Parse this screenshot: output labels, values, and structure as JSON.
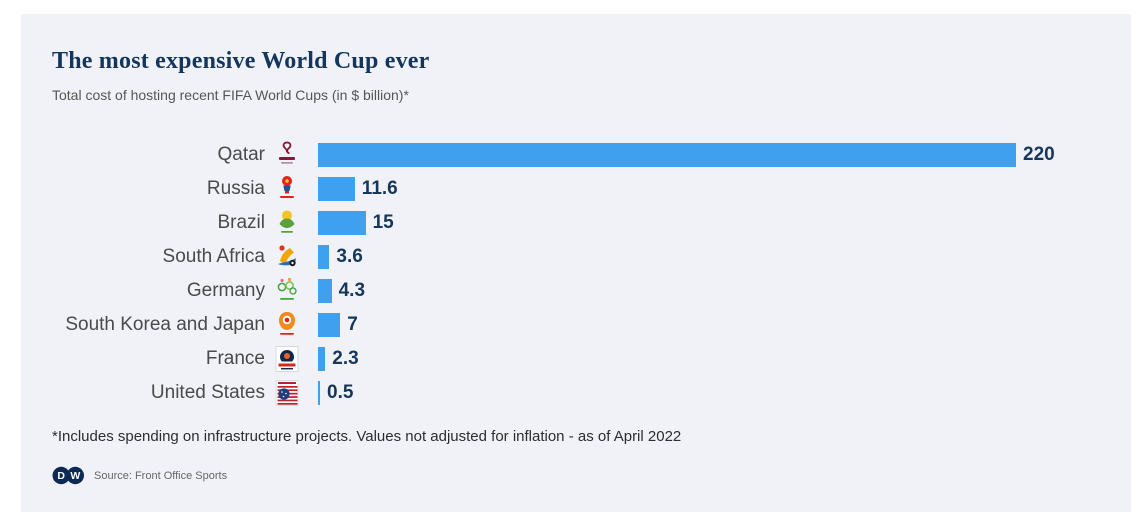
{
  "card": {
    "title": "The most expensive World Cup ever",
    "subtitle": "Total cost of hosting recent FIFA World Cups (in $ billion)*",
    "footnote": "*Includes spending on infrastructure projects. Values not adjusted for inflation - as of April 2022",
    "source_label": "Source: Front Office Sports",
    "logo_text": "DW"
  },
  "chart_data": {
    "type": "bar",
    "orientation": "horizontal",
    "title": "The most expensive World Cup ever",
    "subtitle": "Total cost of hosting recent FIFA World Cups (in $ billion)*",
    "unit": "$ billion",
    "categories": [
      "Qatar",
      "Russia",
      "Brazil",
      "South Africa",
      "Germany",
      "South Korea and Japan",
      "France",
      "United States"
    ],
    "values": [
      220,
      11.6,
      15,
      3.6,
      4.3,
      7,
      2.3,
      0.5
    ],
    "value_labels": [
      "220",
      "11.6",
      "15",
      "3.6",
      "4.3",
      "7",
      "2.3",
      "0.5"
    ],
    "icons": [
      "qatar-2022-logo",
      "russia-2018-logo",
      "brazil-2014-logo",
      "south-africa-2010-logo",
      "germany-2006-logo",
      "korea-japan-2002-logo",
      "france-1998-logo",
      "usa-1994-logo"
    ],
    "xlim": [
      0,
      220
    ],
    "grid": false,
    "legend": false,
    "bar_color": "#3fa0ef",
    "value_label_color": "#16365a",
    "category_label_color": "#4a4a4a",
    "background_color": "#f0f2f7"
  }
}
